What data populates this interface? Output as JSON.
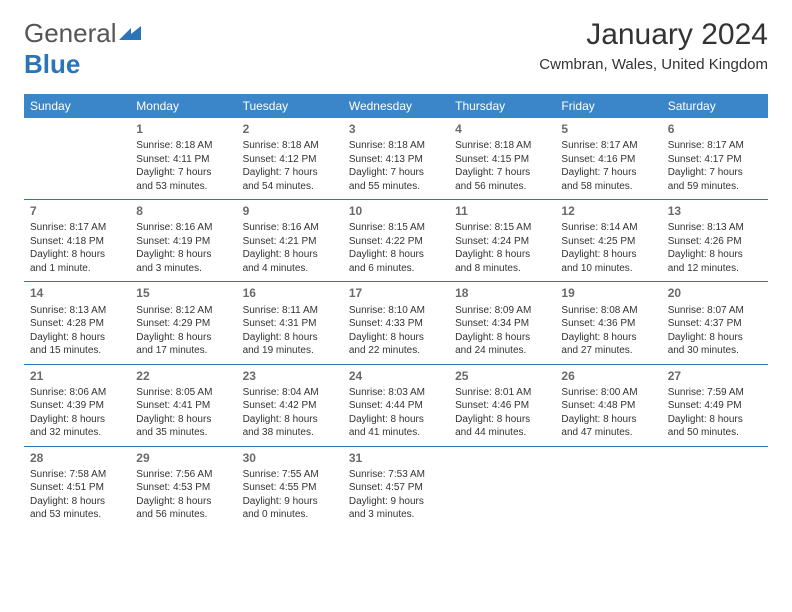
{
  "brand": {
    "part1": "General",
    "part2": "Blue"
  },
  "title": "January 2024",
  "location": "Cwmbran, Wales, United Kingdom",
  "colors": {
    "header_bg": "#3a86c8",
    "header_fg": "#ffffff",
    "rule": "#2b74b8",
    "text": "#333333",
    "daynum": "#6a6a6a",
    "page_bg": "#ffffff"
  },
  "day_headers": [
    "Sunday",
    "Monday",
    "Tuesday",
    "Wednesday",
    "Thursday",
    "Friday",
    "Saturday"
  ],
  "weeks": [
    [
      null,
      {
        "n": "1",
        "sr": "Sunrise: 8:18 AM",
        "ss": "Sunset: 4:11 PM",
        "d1": "Daylight: 7 hours",
        "d2": "and 53 minutes."
      },
      {
        "n": "2",
        "sr": "Sunrise: 8:18 AM",
        "ss": "Sunset: 4:12 PM",
        "d1": "Daylight: 7 hours",
        "d2": "and 54 minutes."
      },
      {
        "n": "3",
        "sr": "Sunrise: 8:18 AM",
        "ss": "Sunset: 4:13 PM",
        "d1": "Daylight: 7 hours",
        "d2": "and 55 minutes."
      },
      {
        "n": "4",
        "sr": "Sunrise: 8:18 AM",
        "ss": "Sunset: 4:15 PM",
        "d1": "Daylight: 7 hours",
        "d2": "and 56 minutes."
      },
      {
        "n": "5",
        "sr": "Sunrise: 8:17 AM",
        "ss": "Sunset: 4:16 PM",
        "d1": "Daylight: 7 hours",
        "d2": "and 58 minutes."
      },
      {
        "n": "6",
        "sr": "Sunrise: 8:17 AM",
        "ss": "Sunset: 4:17 PM",
        "d1": "Daylight: 7 hours",
        "d2": "and 59 minutes."
      }
    ],
    [
      {
        "n": "7",
        "sr": "Sunrise: 8:17 AM",
        "ss": "Sunset: 4:18 PM",
        "d1": "Daylight: 8 hours",
        "d2": "and 1 minute."
      },
      {
        "n": "8",
        "sr": "Sunrise: 8:16 AM",
        "ss": "Sunset: 4:19 PM",
        "d1": "Daylight: 8 hours",
        "d2": "and 3 minutes."
      },
      {
        "n": "9",
        "sr": "Sunrise: 8:16 AM",
        "ss": "Sunset: 4:21 PM",
        "d1": "Daylight: 8 hours",
        "d2": "and 4 minutes."
      },
      {
        "n": "10",
        "sr": "Sunrise: 8:15 AM",
        "ss": "Sunset: 4:22 PM",
        "d1": "Daylight: 8 hours",
        "d2": "and 6 minutes."
      },
      {
        "n": "11",
        "sr": "Sunrise: 8:15 AM",
        "ss": "Sunset: 4:24 PM",
        "d1": "Daylight: 8 hours",
        "d2": "and 8 minutes."
      },
      {
        "n": "12",
        "sr": "Sunrise: 8:14 AM",
        "ss": "Sunset: 4:25 PM",
        "d1": "Daylight: 8 hours",
        "d2": "and 10 minutes."
      },
      {
        "n": "13",
        "sr": "Sunrise: 8:13 AM",
        "ss": "Sunset: 4:26 PM",
        "d1": "Daylight: 8 hours",
        "d2": "and 12 minutes."
      }
    ],
    [
      {
        "n": "14",
        "sr": "Sunrise: 8:13 AM",
        "ss": "Sunset: 4:28 PM",
        "d1": "Daylight: 8 hours",
        "d2": "and 15 minutes."
      },
      {
        "n": "15",
        "sr": "Sunrise: 8:12 AM",
        "ss": "Sunset: 4:29 PM",
        "d1": "Daylight: 8 hours",
        "d2": "and 17 minutes."
      },
      {
        "n": "16",
        "sr": "Sunrise: 8:11 AM",
        "ss": "Sunset: 4:31 PM",
        "d1": "Daylight: 8 hours",
        "d2": "and 19 minutes."
      },
      {
        "n": "17",
        "sr": "Sunrise: 8:10 AM",
        "ss": "Sunset: 4:33 PM",
        "d1": "Daylight: 8 hours",
        "d2": "and 22 minutes."
      },
      {
        "n": "18",
        "sr": "Sunrise: 8:09 AM",
        "ss": "Sunset: 4:34 PM",
        "d1": "Daylight: 8 hours",
        "d2": "and 24 minutes."
      },
      {
        "n": "19",
        "sr": "Sunrise: 8:08 AM",
        "ss": "Sunset: 4:36 PM",
        "d1": "Daylight: 8 hours",
        "d2": "and 27 minutes."
      },
      {
        "n": "20",
        "sr": "Sunrise: 8:07 AM",
        "ss": "Sunset: 4:37 PM",
        "d1": "Daylight: 8 hours",
        "d2": "and 30 minutes."
      }
    ],
    [
      {
        "n": "21",
        "sr": "Sunrise: 8:06 AM",
        "ss": "Sunset: 4:39 PM",
        "d1": "Daylight: 8 hours",
        "d2": "and 32 minutes."
      },
      {
        "n": "22",
        "sr": "Sunrise: 8:05 AM",
        "ss": "Sunset: 4:41 PM",
        "d1": "Daylight: 8 hours",
        "d2": "and 35 minutes."
      },
      {
        "n": "23",
        "sr": "Sunrise: 8:04 AM",
        "ss": "Sunset: 4:42 PM",
        "d1": "Daylight: 8 hours",
        "d2": "and 38 minutes."
      },
      {
        "n": "24",
        "sr": "Sunrise: 8:03 AM",
        "ss": "Sunset: 4:44 PM",
        "d1": "Daylight: 8 hours",
        "d2": "and 41 minutes."
      },
      {
        "n": "25",
        "sr": "Sunrise: 8:01 AM",
        "ss": "Sunset: 4:46 PM",
        "d1": "Daylight: 8 hours",
        "d2": "and 44 minutes."
      },
      {
        "n": "26",
        "sr": "Sunrise: 8:00 AM",
        "ss": "Sunset: 4:48 PM",
        "d1": "Daylight: 8 hours",
        "d2": "and 47 minutes."
      },
      {
        "n": "27",
        "sr": "Sunrise: 7:59 AM",
        "ss": "Sunset: 4:49 PM",
        "d1": "Daylight: 8 hours",
        "d2": "and 50 minutes."
      }
    ],
    [
      {
        "n": "28",
        "sr": "Sunrise: 7:58 AM",
        "ss": "Sunset: 4:51 PM",
        "d1": "Daylight: 8 hours",
        "d2": "and 53 minutes."
      },
      {
        "n": "29",
        "sr": "Sunrise: 7:56 AM",
        "ss": "Sunset: 4:53 PM",
        "d1": "Daylight: 8 hours",
        "d2": "and 56 minutes."
      },
      {
        "n": "30",
        "sr": "Sunrise: 7:55 AM",
        "ss": "Sunset: 4:55 PM",
        "d1": "Daylight: 9 hours",
        "d2": "and 0 minutes."
      },
      {
        "n": "31",
        "sr": "Sunrise: 7:53 AM",
        "ss": "Sunset: 4:57 PM",
        "d1": "Daylight: 9 hours",
        "d2": "and 3 minutes."
      },
      null,
      null,
      null
    ]
  ]
}
